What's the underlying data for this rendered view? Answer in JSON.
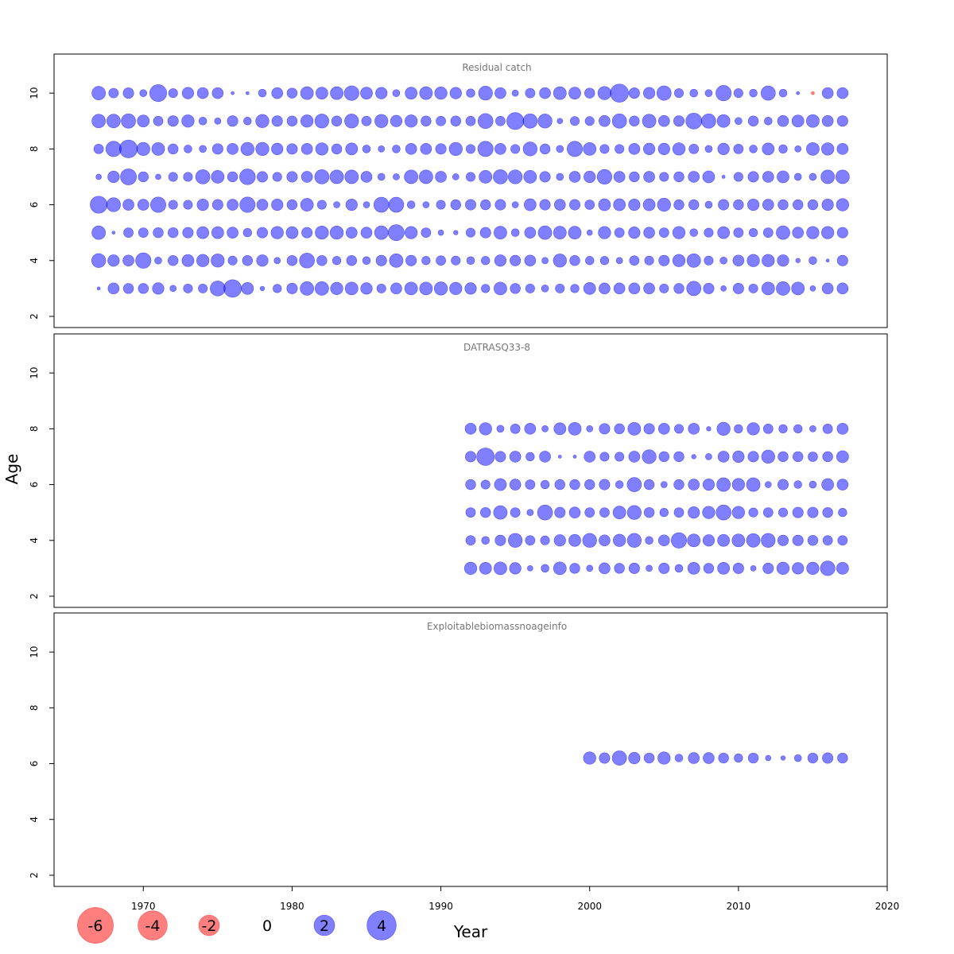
{
  "figure": {
    "ylabel": "Age",
    "xlabel": "Year",
    "colors": {
      "positive": "#0000ff",
      "negative": "#ff0000",
      "bubble_alpha": 0.5
    },
    "x_ticks": [
      1970,
      1980,
      1990,
      2000,
      2010,
      2020
    ],
    "y_ticks": [
      2,
      4,
      6,
      8,
      10
    ],
    "legend": {
      "values": [
        -6,
        -4,
        -2,
        0,
        2,
        4
      ],
      "labels": [
        "-6",
        "-4",
        "-2",
        "0",
        "2",
        "4"
      ]
    }
  },
  "chart_data": [
    {
      "type": "scatter",
      "title": "Residual catch",
      "xlim": [
        1964,
        2020
      ],
      "ylim": [
        1.6,
        11.4
      ],
      "years": [
        1967,
        1968,
        1969,
        1970,
        1971,
        1972,
        1973,
        1974,
        1975,
        1976,
        1977,
        1978,
        1979,
        1980,
        1981,
        1982,
        1983,
        1984,
        1985,
        1986,
        1987,
        1988,
        1989,
        1990,
        1991,
        1992,
        1993,
        1994,
        1995,
        1996,
        1997,
        1998,
        1999,
        2000,
        2001,
        2002,
        2003,
        2004,
        2005,
        2006,
        2007,
        2008,
        2009,
        2010,
        2011,
        2012,
        2013,
        2014,
        2015,
        2016,
        2017
      ],
      "ages": [
        3,
        4,
        5,
        6,
        7,
        8,
        9,
        10
      ],
      "residuals": {
        "10": [
          1.8,
          0.9,
          1.1,
          0.5,
          2.8,
          0.8,
          1.3,
          1.2,
          1.2,
          0.1,
          0.1,
          0.6,
          1.2,
          1.0,
          1.6,
          1.4,
          1.6,
          2.1,
          1.4,
          1.3,
          0.5,
          1.4,
          1.6,
          1.5,
          1.3,
          0.7,
          1.9,
          1.2,
          0.4,
          0.9,
          1.2,
          1.6,
          1.4,
          1.0,
          1.7,
          3.2,
          1.1,
          1.3,
          2.0,
          0.8,
          0.6,
          0.5,
          2.3,
          0.8,
          0.6,
          2.0,
          0.6,
          0.1,
          -0.1,
          1.2,
          1.2
        ],
        "9": [
          1.8,
          1.8,
          2.0,
          1.4,
          0.9,
          1.1,
          1.5,
          0.6,
          0.4,
          1.1,
          0.6,
          1.7,
          1.1,
          1.0,
          1.5,
          1.9,
          1.0,
          1.9,
          0.9,
          1.7,
          1.3,
          1.5,
          1.0,
          0.9,
          1.0,
          0.9,
          2.2,
          0.9,
          2.8,
          2.0,
          1.9,
          0.3,
          0.8,
          0.8,
          1.2,
          2.0,
          1.0,
          1.8,
          1.2,
          1.1,
          2.5,
          2.0,
          1.6,
          0.5,
          1.0,
          0.6,
          1.2,
          1.4,
          1.6,
          1.2,
          1.1
        ],
        "8": [
          0.9,
          2.3,
          3.1,
          1.7,
          1.6,
          1.0,
          0.6,
          0.5,
          1.1,
          1.2,
          1.7,
          1.7,
          1.3,
          1.1,
          1.2,
          1.5,
          1.0,
          1.4,
          0.6,
          0.4,
          0.6,
          1.2,
          1.2,
          1.1,
          1.7,
          0.8,
          2.3,
          1.2,
          0.8,
          1.9,
          1.0,
          0.5,
          2.3,
          1.6,
          0.8,
          0.8,
          1.2,
          1.3,
          1.3,
          1.5,
          0.9,
          0.5,
          1.3,
          0.9,
          0.6,
          1.4,
          0.7,
          0.4,
          1.6,
          1.5,
          1.2
        ],
        "7": [
          0.3,
          1.3,
          2.5,
          1.0,
          0.3,
          0.8,
          0.8,
          2.0,
          1.6,
          1.0,
          2.4,
          1.1,
          0.8,
          1.1,
          1.2,
          2.0,
          1.8,
          1.8,
          1.2,
          0.5,
          0.4,
          1.8,
          1.8,
          1.2,
          0.4,
          0.8,
          1.6,
          2.0,
          1.9,
          1.6,
          1.1,
          0.5,
          1.2,
          1.3,
          2.1,
          1.2,
          1.0,
          1.2,
          0.8,
          1.0,
          1.2,
          1.4,
          0.1,
          0.8,
          1.1,
          1.2,
          1.4,
          0.5,
          0.5,
          1.8,
          1.8
        ],
        "6": [
          2.8,
          1.9,
          1.2,
          1.2,
          2.3,
          0.8,
          0.8,
          1.3,
          1.1,
          1.2,
          2.3,
          1.2,
          1.3,
          1.0,
          1.6,
          0.8,
          0.4,
          1.3,
          0.4,
          2.2,
          2.2,
          0.6,
          0.4,
          0.8,
          1.0,
          1.1,
          1.0,
          1.1,
          0.4,
          1.4,
          1.1,
          1.2,
          1.1,
          0.9,
          1.4,
          1.4,
          1.3,
          1.4,
          1.7,
          1.0,
          1.0,
          0.5,
          1.1,
          1.0,
          1.3,
          1.2,
          1.0,
          1.0,
          1.0,
          1.3,
          1.5
        ],
        "5": [
          1.8,
          0.1,
          0.9,
          0.9,
          1.0,
          1.0,
          1.1,
          1.4,
          1.4,
          1.2,
          0.7,
          1.1,
          1.5,
          1.4,
          1.1,
          1.7,
          1.7,
          1.2,
          1.2,
          1.8,
          2.5,
          1.5,
          0.9,
          0.3,
          0.2,
          0.8,
          1.1,
          1.6,
          0.6,
          1.2,
          1.8,
          1.6,
          1.6,
          0.3,
          1.5,
          0.9,
          1.3,
          1.2,
          0.9,
          1.5,
          0.6,
          0.8,
          1.4,
          0.9,
          0.7,
          0.9,
          1.8,
          1.2,
          1.5,
          1.5,
          1.1
        ],
        "4": [
          1.9,
          1.3,
          1.2,
          2.3,
          0.5,
          1.0,
          1.4,
          1.5,
          1.7,
          0.8,
          1.0,
          1.3,
          0.4,
          1.0,
          2.2,
          1.0,
          0.7,
          1.0,
          0.6,
          1.1,
          1.8,
          1.1,
          0.7,
          0.9,
          0.8,
          0.6,
          0.7,
          1.3,
          1.1,
          1.2,
          0.4,
          1.7,
          1.0,
          0.7,
          0.7,
          0.4,
          0.9,
          0.8,
          1.1,
          1.5,
          1.8,
          0.8,
          0.5,
          1.2,
          1.5,
          1.5,
          1.3,
          0.2,
          0.6,
          0.1,
          1.1
        ],
        "3": [
          0.1,
          1.2,
          1.0,
          1.0,
          1.3,
          0.4,
          0.8,
          0.8,
          2.2,
          3.0,
          1.4,
          0.2,
          0.7,
          1.1,
          1.8,
          1.8,
          1.5,
          1.6,
          1.3,
          0.8,
          1.2,
          1.6,
          1.6,
          1.7,
          1.5,
          1.3,
          0.7,
          1.6,
          1.0,
          0.8,
          0.5,
          0.8,
          0.7,
          1.4,
          1.2,
          1.2,
          1.2,
          1.2,
          0.8,
          1.0,
          2.0,
          1.1,
          0.3,
          1.1,
          0.8,
          1.6,
          1.8,
          1.6,
          0.3,
          1.2,
          1.2
        ]
      }
    },
    {
      "type": "scatter",
      "title": "DATRASQ33-8",
      "xlim": [
        1964,
        2020
      ],
      "ylim": [
        1.6,
        11.4
      ],
      "years": [
        1992,
        1993,
        1994,
        1995,
        1996,
        1997,
        1998,
        1999,
        2000,
        2001,
        2002,
        2003,
        2004,
        2005,
        2006,
        2007,
        2008,
        2009,
        2010,
        2011,
        2012,
        2013,
        2014,
        2015,
        2016,
        2017
      ],
      "ages": [
        3,
        4,
        5,
        6,
        7,
        8
      ],
      "residuals": {
        "8": [
          1.2,
          1.5,
          0.5,
          0.9,
          1.2,
          0.4,
          1.4,
          1.6,
          0.4,
          1.1,
          1.0,
          1.6,
          1.1,
          1.2,
          0.8,
          1.2,
          0.2,
          1.7,
          0.7,
          1.5,
          0.9,
          0.7,
          0.7,
          0.4,
          0.9,
          1.2
        ],
        "7": [
          1.1,
          3.0,
          1.1,
          1.2,
          0.7,
          1.2,
          0.1,
          0.1,
          1.2,
          0.8,
          0.8,
          1.2,
          1.9,
          1.0,
          1.0,
          0.2,
          0.4,
          1.2,
          1.3,
          1.1,
          1.7,
          1.0,
          1.0,
          0.9,
          1.0,
          1.4
        ],
        "6": [
          1.0,
          0.8,
          1.4,
          1.2,
          0.9,
          0.7,
          1.0,
          1.0,
          1.0,
          1.1,
          0.6,
          2.0,
          1.0,
          0.4,
          1.0,
          1.2,
          1.3,
          1.8,
          1.5,
          1.8,
          0.4,
          1.1,
          0.6,
          0.5,
          1.4,
          1.2
        ],
        "5": [
          0.9,
          1.0,
          1.8,
          0.9,
          0.4,
          2.2,
          1.1,
          1.2,
          0.9,
          0.9,
          1.6,
          1.9,
          1.0,
          0.7,
          0.9,
          1.3,
          1.5,
          2.2,
          1.5,
          0.8,
          0.9,
          0.8,
          1.1,
          1.1,
          1.0,
          0.7
        ],
        "4": [
          0.9,
          0.6,
          1.1,
          1.9,
          0.9,
          0.8,
          1.3,
          1.4,
          1.9,
          1.2,
          1.5,
          1.9,
          0.6,
          1.2,
          2.3,
          1.6,
          1.3,
          1.4,
          1.6,
          1.8,
          1.9,
          1.1,
          1.1,
          1.0,
          0.9,
          0.9
        ],
        "3": [
          1.5,
          1.4,
          1.6,
          1.3,
          0.3,
          0.6,
          1.6,
          1.0,
          0.4,
          1.2,
          1.0,
          1.1,
          0.4,
          1.1,
          0.6,
          1.4,
          1.0,
          1.4,
          1.1,
          0.3,
          1.1,
          1.5,
          1.3,
          1.5,
          2.1,
          1.4
        ]
      }
    },
    {
      "type": "scatter",
      "title": "Exploitablebiomassnoageinfo",
      "xlim": [
        1964,
        2020
      ],
      "ylim": [
        1.6,
        11.4
      ],
      "years": [
        2000,
        2001,
        2002,
        2003,
        2004,
        2005,
        2006,
        2007,
        2008,
        2009,
        2010,
        2011,
        2012,
        2013,
        2014,
        2015,
        2016,
        2017
      ],
      "ages": [
        6.2
      ],
      "residuals": {
        "6.2": [
          1.5,
          1.1,
          2.0,
          1.3,
          1.0,
          1.5,
          0.6,
          1.2,
          1.2,
          1.0,
          0.7,
          1.0,
          0.3,
          0.2,
          0.5,
          1.0,
          1.1,
          1.0
        ]
      }
    }
  ]
}
